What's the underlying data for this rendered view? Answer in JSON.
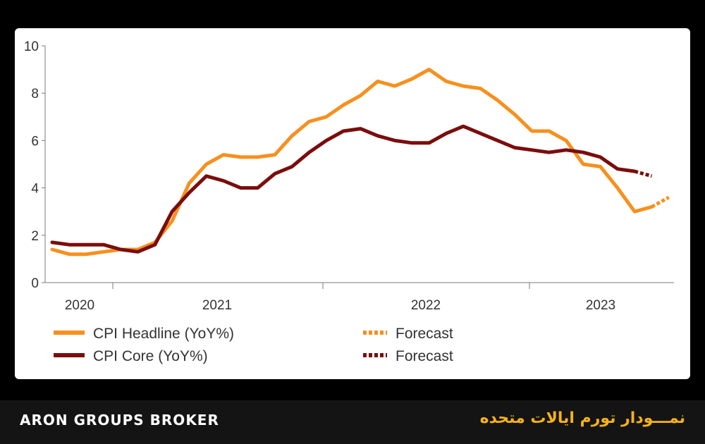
{
  "brand": "ARON GROUPS BROKER",
  "caption": "نمـــودار تورم ایالات متحده",
  "colors": {
    "background": "#000000",
    "footer": "#141414",
    "caption": "#f6b21a",
    "headline": "#f7901e",
    "core": "#7b0d0d"
  },
  "chart_data": {
    "type": "line",
    "ylim": [
      0,
      10
    ],
    "yticks": [
      "0",
      "2",
      "4",
      "6",
      "8",
      "10"
    ],
    "year_labels": [
      "2020",
      "2021",
      "2022",
      "2023"
    ],
    "grid": false,
    "legend_position": "bottom",
    "series": [
      {
        "name": "CPI Headline (YoY%)",
        "color": "#f7901e",
        "style": "solid",
        "values": [
          1.4,
          1.2,
          1.2,
          1.3,
          1.4,
          1.4,
          1.7,
          2.6,
          4.2,
          5.0,
          5.4,
          5.3,
          5.3,
          5.4,
          6.2,
          6.8,
          7.0,
          7.5,
          7.9,
          8.5,
          8.3,
          8.6,
          9.0,
          8.5,
          8.3,
          8.2,
          7.7,
          7.1,
          6.4,
          6.4,
          6.0,
          5.0,
          4.9,
          4.0,
          3.0,
          3.2
        ]
      },
      {
        "name": "Forecast",
        "color": "#f7901e",
        "style": "dotted",
        "values": [
          3.2,
          3.6
        ]
      },
      {
        "name": "CPI Core (YoY%)",
        "color": "#7b0d0d",
        "style": "solid",
        "values": [
          1.7,
          1.6,
          1.6,
          1.6,
          1.4,
          1.3,
          1.6,
          3.0,
          3.8,
          4.5,
          4.3,
          4.0,
          4.0,
          4.6,
          4.9,
          5.5,
          6.0,
          6.4,
          6.5,
          6.2,
          6.0,
          5.9,
          5.9,
          6.3,
          6.6,
          6.3,
          6.0,
          5.7,
          5.6,
          5.5,
          5.6,
          5.5,
          5.3,
          4.8,
          4.7
        ]
      },
      {
        "name": "Forecast",
        "color": "#7b0d0d",
        "style": "dotted",
        "values": [
          4.7,
          4.5
        ]
      }
    ]
  }
}
